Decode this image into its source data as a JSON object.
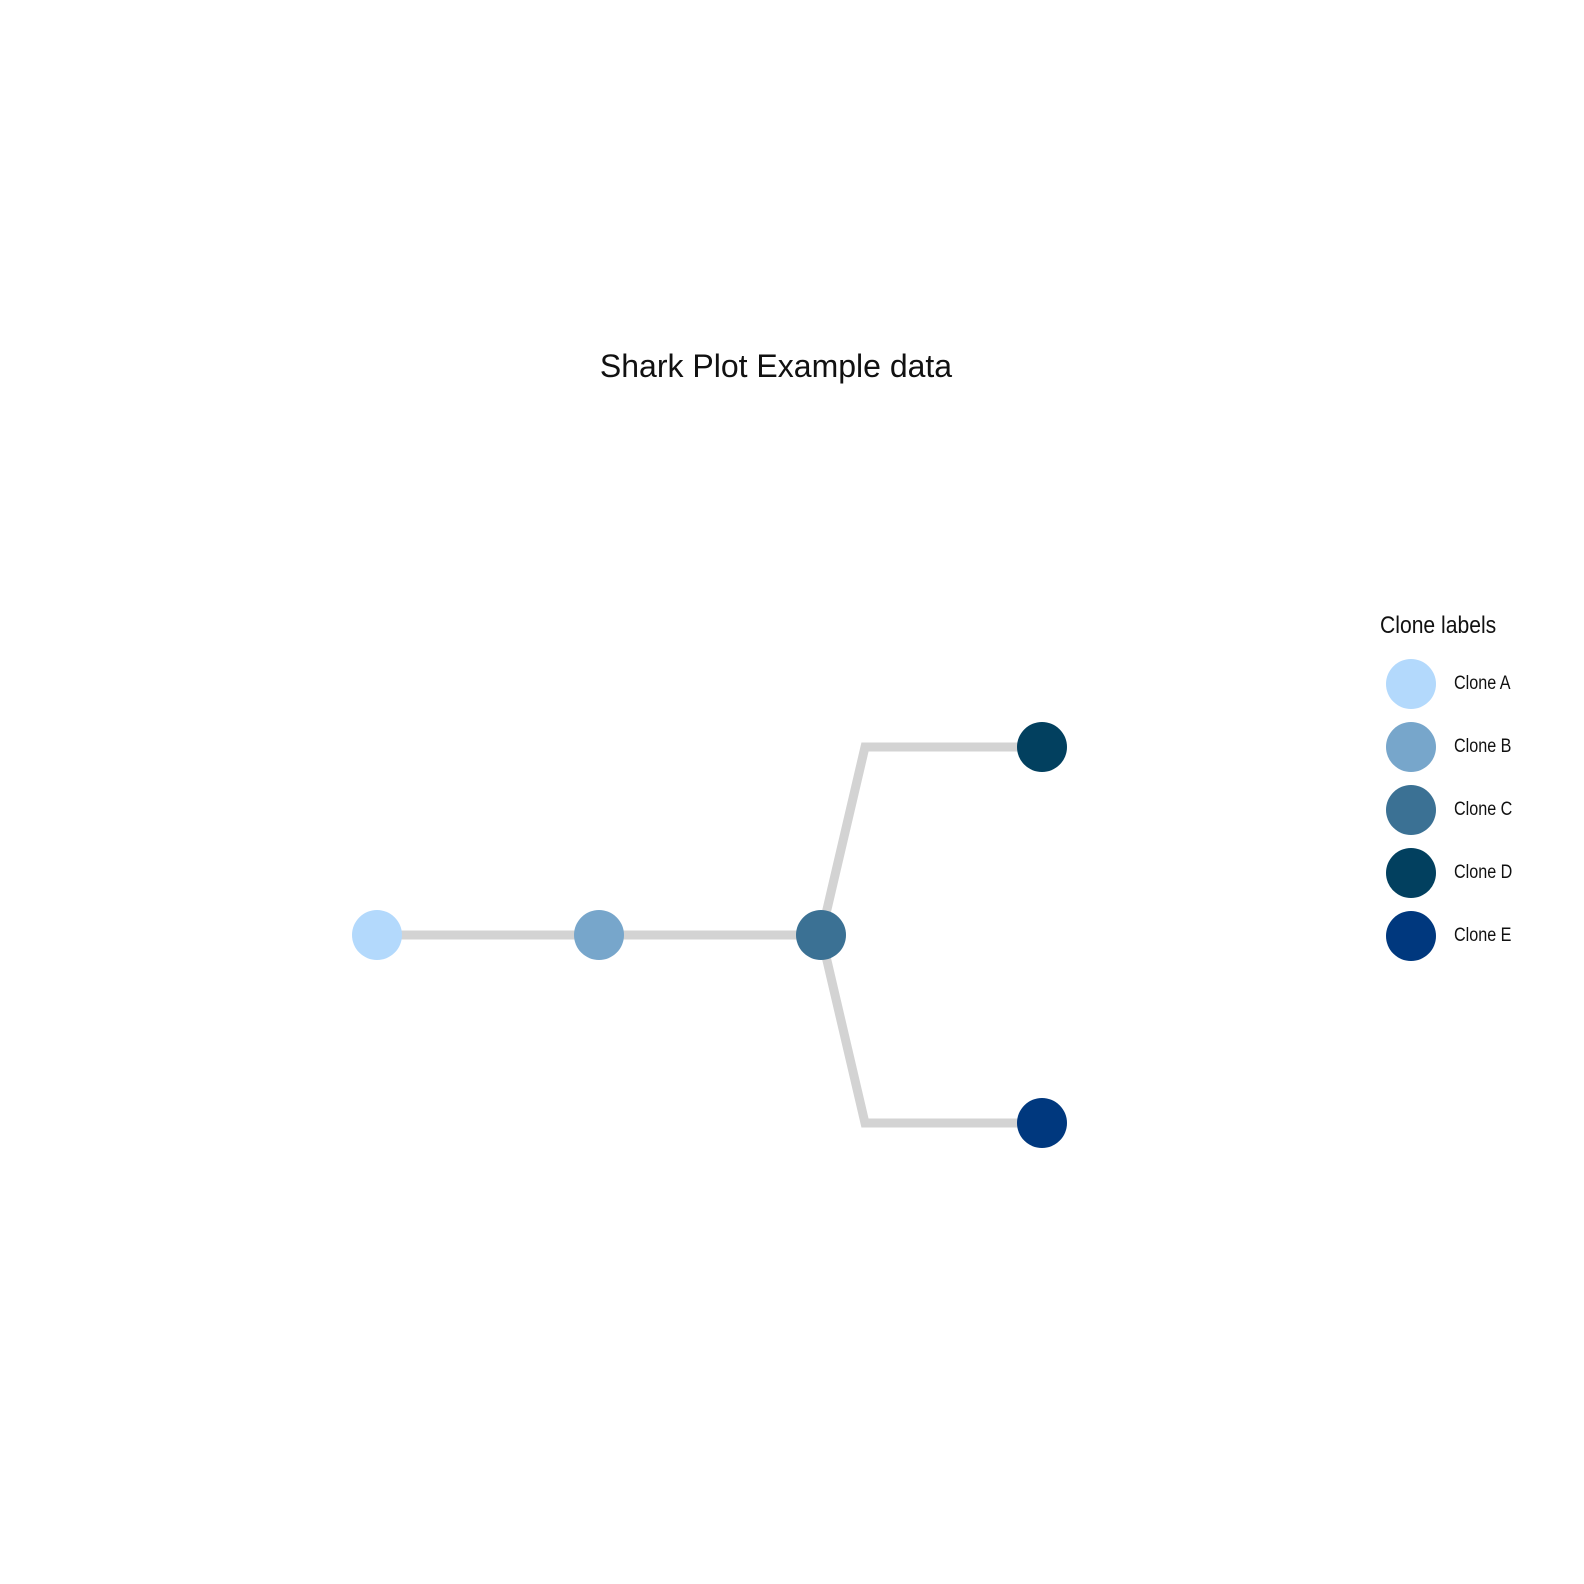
{
  "title": "Shark Plot Example data",
  "legend": {
    "title": "Clone labels",
    "items": [
      {
        "label": "Clone A",
        "color": "#b3d9fc"
      },
      {
        "label": "Clone B",
        "color": "#77a6cb"
      },
      {
        "label": "Clone C",
        "color": "#3b7194"
      },
      {
        "label": "Clone D",
        "color": "#02405f"
      },
      {
        "label": "Clone E",
        "color": "#00387e"
      }
    ]
  },
  "tree": {
    "edge_color": "#d3d3d3",
    "nodes": [
      {
        "id": "A",
        "label": "Clone A",
        "color": "#b3d9fc"
      },
      {
        "id": "B",
        "label": "Clone B",
        "color": "#77a6cb"
      },
      {
        "id": "C",
        "label": "Clone C",
        "color": "#3b7194"
      },
      {
        "id": "D",
        "label": "Clone D",
        "color": "#02405f"
      },
      {
        "id": "E",
        "label": "Clone E",
        "color": "#00387e"
      }
    ],
    "edges": [
      {
        "from": "A",
        "to": "B"
      },
      {
        "from": "B",
        "to": "C"
      },
      {
        "from": "C",
        "to": "D"
      },
      {
        "from": "C",
        "to": "E"
      }
    ]
  }
}
